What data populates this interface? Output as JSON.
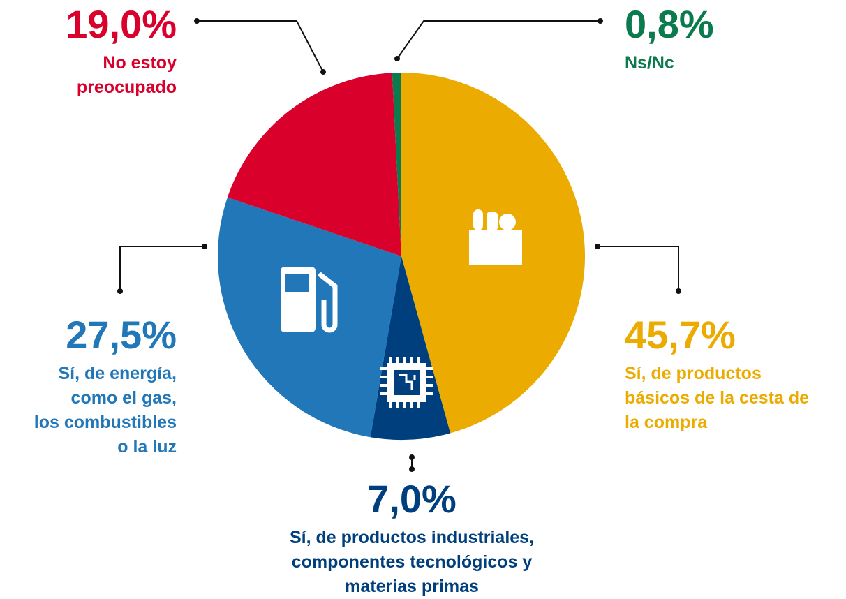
{
  "chart_data": {
    "type": "pie",
    "categories": [
      "Sí, de productos\nbásicos de la cesta de\nla compra",
      "Sí, de productos industriales,\ncomponentes tecnológicos y\nmaterias primas",
      "Sí, de energía,\ncomo el gas,\nlos combustibles\no la luz",
      "No estoy\npreocupado",
      "Ns/Nc"
    ],
    "values": [
      45.7,
      7.0,
      27.5,
      19.0,
      0.8
    ],
    "value_labels": [
      "45,7%",
      "7,0%",
      "27,5%",
      "19,0%",
      "0,8%"
    ],
    "colors": [
      "#ebab00",
      "#003f7d",
      "#2277b8",
      "#d9002c",
      "#0b7a4f"
    ]
  }
}
